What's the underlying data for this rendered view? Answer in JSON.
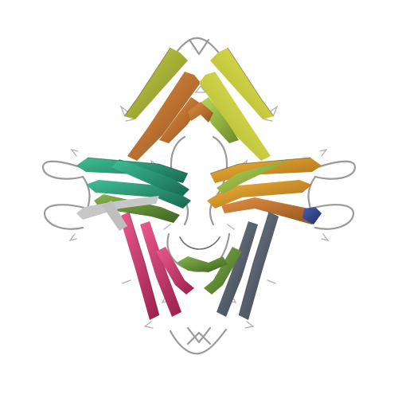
{
  "figure": {
    "background": "#ffffff",
    "subject": "protein-ribbon-structure",
    "colors": {
      "olive": "#a9b733",
      "yellow": "#d6d93a",
      "orange": "#c8782a",
      "gold": "#d99b25",
      "teal": "#2f9b7a",
      "green": "#6a9a3a",
      "lime": "#9bc23f",
      "magenta": "#d23a72",
      "pink": "#c95a8f",
      "red": "#b83a40",
      "slate": "#5a6270",
      "navy": "#2a3f8a",
      "gray": "#9a9a9a"
    }
  }
}
